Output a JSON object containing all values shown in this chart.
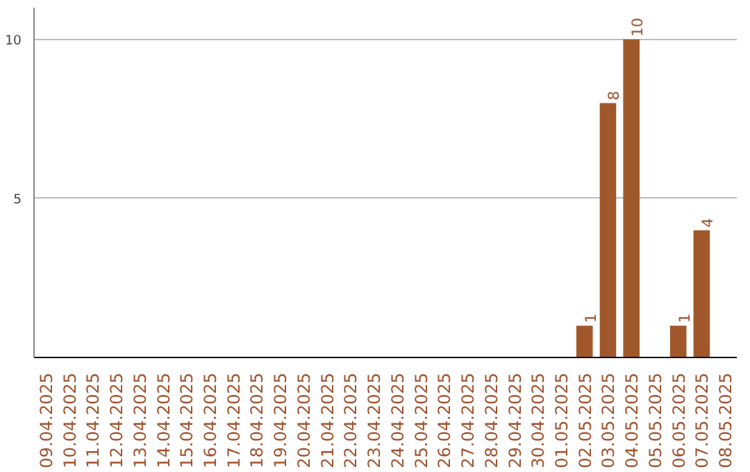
{
  "chart_data": {
    "type": "bar",
    "categories": [
      "09.04.2025",
      "10.04.2025",
      "11.04.2025",
      "12.04.2025",
      "13.04.2025",
      "14.04.2025",
      "15.04.2025",
      "16.04.2025",
      "17.04.2025",
      "18.04.2025",
      "19.04.2025",
      "20.04.2025",
      "21.04.2025",
      "22.04.2025",
      "23.04.2025",
      "24.04.2025",
      "25.04.2025",
      "26.04.2025",
      "27.04.2025",
      "28.04.2025",
      "29.04.2025",
      "30.04.2025",
      "01.05.2025",
      "02.05.2025",
      "03.05.2025",
      "04.05.2025",
      "05.05.2025",
      "06.05.2025",
      "07.05.2025",
      "08.05.2025"
    ],
    "values": [
      0,
      0,
      0,
      0,
      0,
      0,
      0,
      0,
      0,
      0,
      0,
      0,
      0,
      0,
      0,
      0,
      0,
      0,
      0,
      0,
      0,
      0,
      0,
      1,
      8,
      10,
      0,
      1,
      4,
      0
    ],
    "value_labels": [
      null,
      null,
      null,
      null,
      null,
      null,
      null,
      null,
      null,
      null,
      null,
      null,
      null,
      null,
      null,
      null,
      null,
      null,
      null,
      null,
      null,
      null,
      null,
      "1",
      "8",
      "10",
      null,
      "1",
      "4",
      null
    ],
    "color": "#a0582a",
    "ylim": [
      0,
      11
    ],
    "yticks": [
      5,
      10
    ],
    "grid": "y"
  }
}
